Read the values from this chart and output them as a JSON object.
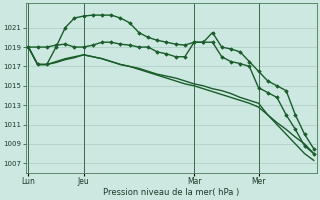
{
  "background_color": "#cce8e0",
  "grid_color": "#aaccc4",
  "line_color": "#1a5c2a",
  "marker_color": "#1a5c2a",
  "xlabel": "Pression niveau de la mer( hPa )",
  "ylim": [
    1006,
    1023.5
  ],
  "yticks": [
    1007,
    1009,
    1011,
    1013,
    1015,
    1017,
    1019,
    1021
  ],
  "xtick_labels": [
    "Lun",
    "Jeu",
    "Mar",
    "Mer"
  ],
  "xtick_positions": [
    0,
    6,
    18,
    25
  ],
  "vline_positions": [
    0,
    6,
    18,
    25
  ],
  "series": [
    {
      "x": [
        0,
        1,
        2,
        3,
        4,
        5,
        6,
        7,
        8,
        9,
        10,
        11,
        12,
        13,
        14,
        15,
        16,
        17,
        18,
        19,
        20,
        21,
        22,
        23,
        24,
        25,
        26,
        27,
        28,
        29,
        30,
        31
      ],
      "y": [
        1019,
        1017.2,
        1017.2,
        1017.5,
        1017.8,
        1018.0,
        1018.2,
        1018.0,
        1017.8,
        1017.5,
        1017.2,
        1017.0,
        1016.8,
        1016.5,
        1016.2,
        1016.0,
        1015.8,
        1015.5,
        1015.2,
        1015.0,
        1014.7,
        1014.5,
        1014.2,
        1013.8,
        1013.5,
        1013.2,
        1012.0,
        1011.0,
        1010.0,
        1009.0,
        1008.0,
        1007.3
      ],
      "marker": false,
      "linewidth": 1.0
    },
    {
      "x": [
        0,
        1,
        2,
        3,
        4,
        5,
        6,
        7,
        8,
        9,
        10,
        11,
        12,
        13,
        14,
        15,
        16,
        17,
        18,
        19,
        20,
        21,
        22,
        23,
        24,
        25,
        26,
        27,
        28,
        29,
        30,
        31
      ],
      "y": [
        1019,
        1017.2,
        1017.2,
        1017.4,
        1017.7,
        1017.9,
        1018.2,
        1018.0,
        1017.8,
        1017.5,
        1017.2,
        1017.0,
        1016.7,
        1016.4,
        1016.1,
        1015.8,
        1015.5,
        1015.2,
        1015.0,
        1014.7,
        1014.4,
        1014.1,
        1013.8,
        1013.5,
        1013.2,
        1012.8,
        1012.0,
        1011.2,
        1010.5,
        1009.7,
        1009.0,
        1008.0
      ],
      "marker": false,
      "linewidth": 1.0
    },
    {
      "x": [
        0,
        1,
        2,
        3,
        4,
        5,
        6,
        7,
        8,
        9,
        10,
        11,
        12,
        13,
        14,
        15,
        16,
        17,
        18,
        19,
        20,
        21,
        22,
        23,
        24,
        25,
        26,
        27,
        28,
        29,
        30,
        31
      ],
      "y": [
        1019,
        1019,
        1019,
        1019.2,
        1019.3,
        1019.0,
        1019.0,
        1019.2,
        1019.5,
        1019.5,
        1019.3,
        1019.2,
        1019.0,
        1019.0,
        1018.5,
        1018.3,
        1018.0,
        1018.0,
        1019.5,
        1019.5,
        1019.5,
        1018.0,
        1017.5,
        1017.3,
        1017.0,
        1014.8,
        1014.3,
        1013.8,
        1012.0,
        1010.5,
        1008.8,
        1008.0
      ],
      "marker": true,
      "linewidth": 1.0
    },
    {
      "x": [
        0,
        1,
        2,
        3,
        4,
        5,
        6,
        7,
        8,
        9,
        10,
        11,
        12,
        13,
        14,
        15,
        16,
        17,
        18,
        19,
        20,
        21,
        22,
        23,
        24,
        25,
        26,
        27,
        28,
        29,
        30,
        31
      ],
      "y": [
        1019,
        1017.2,
        1017.2,
        1019.0,
        1021.0,
        1022.0,
        1022.2,
        1022.3,
        1022.3,
        1022.3,
        1022.0,
        1021.5,
        1020.5,
        1020.0,
        1019.7,
        1019.5,
        1019.3,
        1019.2,
        1019.5,
        1019.5,
        1020.5,
        1019.0,
        1018.8,
        1018.5,
        1017.5,
        1016.5,
        1015.5,
        1015.0,
        1014.5,
        1012.0,
        1010.0,
        1008.5
      ],
      "marker": true,
      "linewidth": 1.0
    }
  ],
  "n_points": 32
}
